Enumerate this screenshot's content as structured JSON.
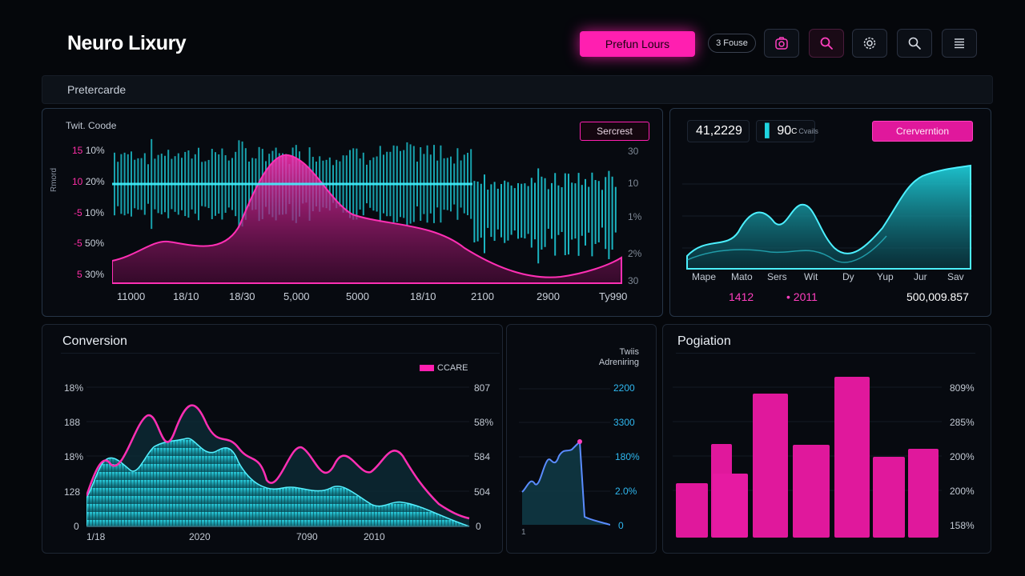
{
  "header": {
    "brand": "Neuro Lixury",
    "cta_label": "Prefun Lours",
    "pill_label": "3 Fouse",
    "icons": [
      "camera-icon",
      "search-icon",
      "gear-icon",
      "search-icon",
      "menu-icon"
    ]
  },
  "subbar": {
    "label": "Pretercarde"
  },
  "colors": {
    "accent": "#ff1fb0",
    "cyan": "#1fd4e0",
    "background": "#05070b"
  },
  "panel1": {
    "title": "Twit. Coode",
    "axis_side_label": "Rmord",
    "tag_label": "Sercrest",
    "left_ticks": [
      {
        "a": "15",
        "b": "10%"
      },
      {
        "a": "10",
        "b": "20%"
      },
      {
        "a": "-5",
        "b": "10%"
      },
      {
        "a": "-5",
        "b": "50%"
      },
      {
        "a": "5",
        "b": "30%"
      }
    ],
    "right_ticks": [
      "30",
      "10",
      "1%",
      "2%",
      "30"
    ],
    "x_ticks": [
      "11000",
      "18/10",
      "18/30",
      "5,000",
      "5000",
      "18/10",
      "2100",
      "2900",
      "Ty990"
    ]
  },
  "panel2": {
    "stat1": "41,2229",
    "stat2_value": "90",
    "stat2_suffix": "C",
    "stat2_note": "Cvails",
    "button_label": "Crerverntion",
    "x_ticks": [
      "Mape",
      "Mato",
      "Sers",
      "Wit",
      "Dy",
      "Yup",
      "Jur",
      "Sav"
    ],
    "footer_left": "1412",
    "footer_mid": "2011",
    "footer_right": "500,009.857"
  },
  "panel3": {
    "title": "Conversion",
    "legend": "CCARE",
    "left_ticks": [
      "18%",
      "188",
      "18%",
      "128",
      "0"
    ],
    "right_ticks": [
      "807",
      "58%",
      "584",
      "504",
      "0"
    ],
    "x_ticks": [
      "1/18",
      "2020",
      "7090",
      "2010"
    ]
  },
  "panel4": {
    "heading_line1": "Twiis",
    "heading_line2": "Adreniring",
    "ticks": [
      "2200",
      "3300",
      "180%",
      "2.0%",
      "0"
    ],
    "x_tick": "1"
  },
  "panel5": {
    "title": "Pogiation",
    "right_ticks": [
      "809%",
      "285%",
      "200%",
      "200%",
      "158%"
    ]
  }
}
